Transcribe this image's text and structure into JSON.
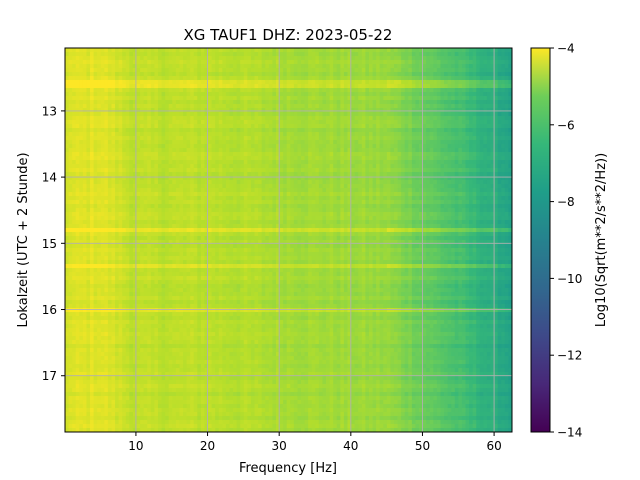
{
  "chart_data": {
    "type": "heatmap",
    "title": "XG TAUF1  DHZ: 2023-05-22",
    "xlabel": "Frequency [Hz]",
    "ylabel": "Lokalzeit (UTC + 2 Stunde)",
    "xlim": [
      0.1,
      62.5
    ],
    "ylim": [
      17.85,
      12.05
    ],
    "x_ticks": [
      10,
      20,
      30,
      40,
      50,
      60
    ],
    "y_ticks": [
      13,
      14,
      15,
      16,
      17
    ],
    "grid": true,
    "colorbar": {
      "label": "Log10(Sqrt(m**2/s**2/Hz))",
      "range": [
        -14,
        -4
      ],
      "ticks": [
        -4,
        -6,
        -8,
        -10,
        -12,
        -14
      ],
      "tick_labels": [
        "−4",
        "−6",
        "−8",
        "−10",
        "−12",
        "−14"
      ],
      "colormap": "viridis"
    },
    "approx_level_by_frequency": {
      "frequency_hz": [
        0,
        5,
        10,
        20,
        30,
        40,
        45,
        50,
        55,
        60,
        62.5
      ],
      "log10_amplitude": [
        -4.6,
        -4.4,
        -5.0,
        -5.0,
        -5.3,
        -5.5,
        -5.6,
        -6.3,
        -7.0,
        -7.8,
        -8.2
      ]
    },
    "bright_bands_local_hour": [
      12.6,
      14.8,
      15.35,
      16.0
    ]
  }
}
